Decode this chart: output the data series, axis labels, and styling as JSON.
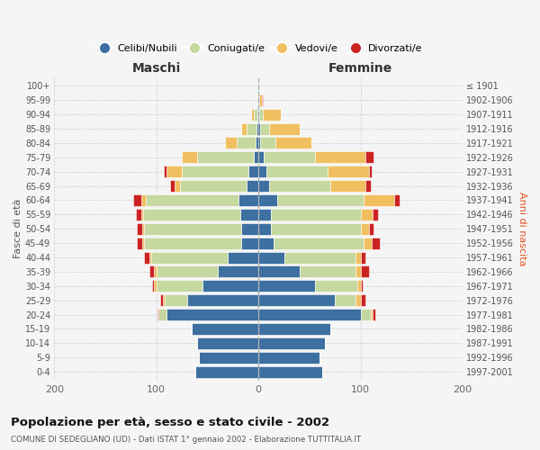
{
  "age_groups": [
    "0-4",
    "5-9",
    "10-14",
    "15-19",
    "20-24",
    "25-29",
    "30-34",
    "35-39",
    "40-44",
    "45-49",
    "50-54",
    "55-59",
    "60-64",
    "65-69",
    "70-74",
    "75-79",
    "80-84",
    "85-89",
    "90-94",
    "95-99",
    "100+"
  ],
  "birth_years": [
    "1997-2001",
    "1992-1996",
    "1987-1991",
    "1982-1986",
    "1977-1981",
    "1972-1976",
    "1967-1971",
    "1962-1966",
    "1957-1961",
    "1952-1956",
    "1947-1951",
    "1942-1946",
    "1937-1941",
    "1932-1936",
    "1927-1931",
    "1922-1926",
    "1917-1921",
    "1912-1916",
    "1907-1911",
    "1902-1906",
    "≤ 1901"
  ],
  "males_cel": [
    62,
    58,
    60,
    65,
    90,
    70,
    55,
    40,
    30,
    17,
    17,
    18,
    20,
    12,
    10,
    5,
    3,
    2,
    1,
    1,
    1
  ],
  "males_con": [
    0,
    0,
    0,
    0,
    8,
    22,
    45,
    60,
    75,
    95,
    95,
    95,
    90,
    65,
    65,
    55,
    18,
    10,
    4,
    0,
    0
  ],
  "males_ved": [
    0,
    0,
    0,
    0,
    0,
    2,
    2,
    2,
    2,
    2,
    2,
    2,
    5,
    5,
    15,
    15,
    12,
    5,
    2,
    0,
    0
  ],
  "males_div": [
    0,
    0,
    0,
    0,
    1,
    2,
    2,
    5,
    5,
    5,
    5,
    5,
    8,
    5,
    3,
    0,
    0,
    0,
    0,
    0,
    0
  ],
  "fem_nub": [
    62,
    60,
    65,
    70,
    100,
    75,
    55,
    40,
    25,
    15,
    12,
    12,
    18,
    10,
    8,
    5,
    2,
    2,
    1,
    1,
    1
  ],
  "fem_con": [
    0,
    0,
    0,
    0,
    10,
    20,
    42,
    55,
    70,
    88,
    88,
    88,
    85,
    60,
    60,
    50,
    15,
    8,
    3,
    0,
    0
  ],
  "fem_ved": [
    0,
    0,
    0,
    0,
    2,
    5,
    3,
    5,
    5,
    8,
    8,
    12,
    30,
    35,
    40,
    50,
    35,
    30,
    18,
    2,
    0
  ],
  "fem_div": [
    0,
    0,
    0,
    0,
    2,
    5,
    2,
    8,
    5,
    8,
    5,
    5,
    5,
    5,
    3,
    8,
    0,
    0,
    0,
    1,
    0
  ],
  "color_cel": "#3d6fa0",
  "color_con": "#c5d8a0",
  "color_ved": "#f0c060",
  "color_div": "#cc2222",
  "xlim": 200,
  "bg_color": "#f5f5f5",
  "grid_color": "#cccccc",
  "title": "Popolazione per età, sesso e stato civile - 2002",
  "subtitle": "COMUNE DI SEDEGLIANO (UD) - Dati ISTAT 1° gennaio 2002 - Elaborazione TUTTITALIA.IT",
  "ylabel_left": "Fasce di età",
  "ylabel_right": "Anni di nascita",
  "label_maschi": "Maschi",
  "label_femmine": "Femmine",
  "legend_labels": [
    "Celibi/Nubili",
    "Coniugati/e",
    "Vedovi/e",
    "Divorzati/e"
  ]
}
